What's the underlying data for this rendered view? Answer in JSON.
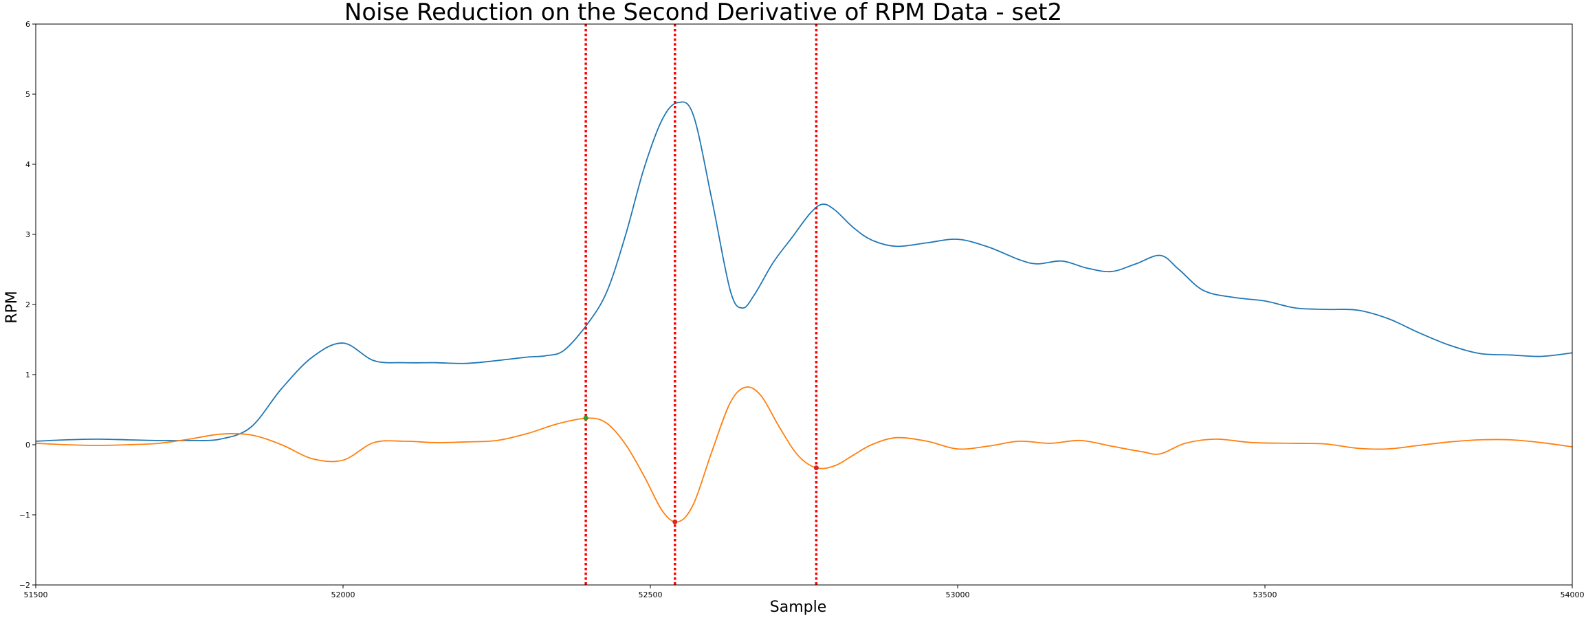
{
  "chart_data": {
    "type": "line",
    "title": "Noise Reduction on the Second Derivative of RPM Data - set2",
    "xlabel": "Sample",
    "ylabel": "RPM",
    "xlim": [
      51500,
      54000
    ],
    "ylim": [
      -2,
      6
    ],
    "x_ticks": [
      51500,
      52000,
      52500,
      53000,
      53500,
      54000
    ],
    "x_tick_labels": [
      "51500",
      "52000",
      "52500",
      "53000",
      "53500",
      "54000"
    ],
    "y_ticks": [
      -2,
      -1,
      0,
      1,
      2,
      3,
      4,
      5,
      6
    ],
    "y_tick_labels": [
      "−2",
      "−1",
      "0",
      "1",
      "2",
      "3",
      "4",
      "5",
      "6"
    ],
    "grid": false,
    "legend": "none",
    "series": [
      {
        "color": "#1f77b4",
        "x": [
          51500,
          51550,
          51600,
          51650,
          51700,
          51750,
          51800,
          51850,
          51900,
          51950,
          52000,
          52050,
          52100,
          52150,
          52200,
          52250,
          52300,
          52330,
          52360,
          52400,
          52430,
          52460,
          52490,
          52520,
          52545,
          52570,
          52600,
          52630,
          52650,
          52670,
          52700,
          52730,
          52760,
          52780,
          52800,
          52830,
          52860,
          52900,
          52950,
          53000,
          53050,
          53100,
          53130,
          53170,
          53210,
          53250,
          53290,
          53330,
          53360,
          53400,
          53450,
          53500,
          53550,
          53600,
          53650,
          53700,
          53750,
          53800,
          53850,
          53900,
          53950,
          54000
        ],
        "y": [
          0.05,
          0.07,
          0.08,
          0.07,
          0.06,
          0.06,
          0.08,
          0.25,
          0.8,
          1.25,
          1.45,
          1.2,
          1.17,
          1.17,
          1.16,
          1.2,
          1.25,
          1.27,
          1.35,
          1.75,
          2.2,
          3.0,
          3.95,
          4.65,
          4.88,
          4.7,
          3.5,
          2.2,
          1.95,
          2.15,
          2.6,
          2.95,
          3.3,
          3.43,
          3.35,
          3.1,
          2.92,
          2.83,
          2.88,
          2.93,
          2.82,
          2.64,
          2.58,
          2.62,
          2.52,
          2.47,
          2.58,
          2.7,
          2.5,
          2.2,
          2.1,
          2.05,
          1.95,
          1.93,
          1.92,
          1.8,
          1.6,
          1.42,
          1.3,
          1.28,
          1.26,
          1.31
        ]
      },
      {
        "color": "#ff7f0e",
        "x": [
          51500,
          51550,
          51600,
          51650,
          51700,
          51750,
          51800,
          51850,
          51900,
          51950,
          52000,
          52050,
          52100,
          52150,
          52200,
          52250,
          52300,
          52350,
          52400,
          52430,
          52460,
          52490,
          52520,
          52545,
          52570,
          52600,
          52630,
          52655,
          52680,
          52710,
          52740,
          52770,
          52800,
          52830,
          52860,
          52900,
          52950,
          53000,
          53050,
          53100,
          53150,
          53200,
          53250,
          53300,
          53330,
          53370,
          53420,
          53480,
          53550,
          53600,
          53650,
          53700,
          53750,
          53800,
          53850,
          53900,
          53950,
          54000
        ],
        "y": [
          0.02,
          0.0,
          -0.01,
          0.0,
          0.02,
          0.08,
          0.15,
          0.14,
          0.0,
          -0.2,
          -0.22,
          0.03,
          0.05,
          0.03,
          0.04,
          0.06,
          0.16,
          0.3,
          0.38,
          0.3,
          0.0,
          -0.45,
          -0.95,
          -1.1,
          -0.85,
          -0.1,
          0.6,
          0.82,
          0.7,
          0.25,
          -0.15,
          -0.33,
          -0.3,
          -0.15,
          0.0,
          0.1,
          0.05,
          -0.06,
          -0.02,
          0.05,
          0.02,
          0.06,
          -0.02,
          -0.1,
          -0.13,
          0.02,
          0.08,
          0.03,
          0.02,
          0.01,
          -0.05,
          -0.06,
          -0.01,
          0.04,
          0.07,
          0.07,
          0.03,
          -0.03
        ]
      }
    ],
    "vertical_lines": [
      52395,
      52540,
      52770
    ],
    "markers": [
      {
        "x": 52395,
        "y": 0.38,
        "color": "#2ca02c"
      },
      {
        "x": 52540,
        "y": -1.1,
        "color": "#d62728"
      },
      {
        "x": 52770,
        "y": -0.33,
        "color": "#d62728"
      }
    ],
    "vline_color": "#ff0000"
  }
}
